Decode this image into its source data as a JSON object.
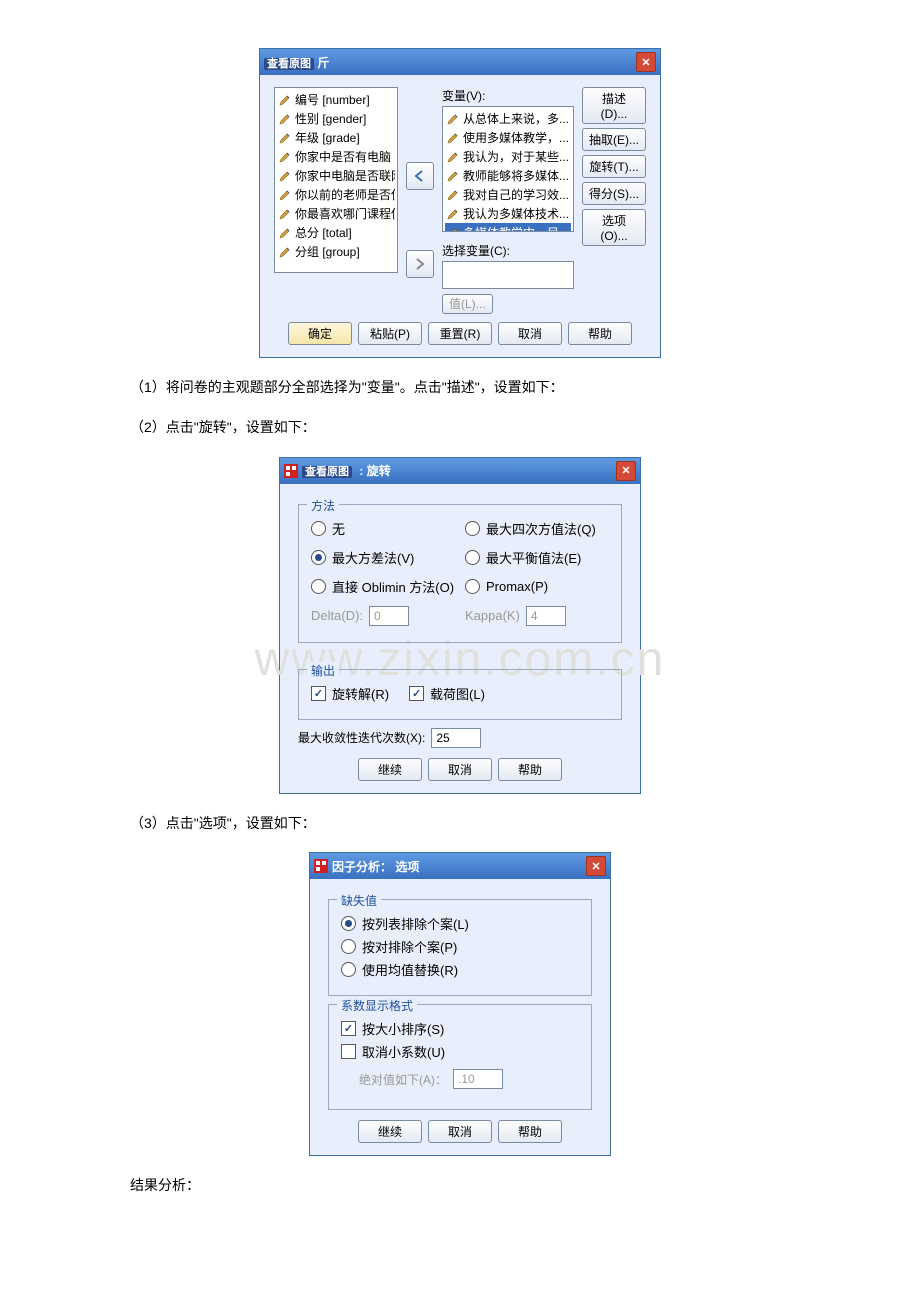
{
  "watermark": "www.zixin.com.cn",
  "dialog1": {
    "view_original_label": "查看原图",
    "title_suffix": "斤",
    "left_items": [
      "编号 [number]",
      "性别 [gender]",
      "年级 [grade]",
      "你家中是否有电脑 [c...",
      "你家中电脑是否联网 ...",
      "你以前的老师是否使...",
      "你最喜欢哪门课程使...",
      "总分 [total]",
      "分组 [group]"
    ],
    "var_label": "变量(V):",
    "select_var_label": "选择变量(C):",
    "right_items": [
      "从总体上来说，多...",
      "使用多媒体教学，...",
      "我认为，对于某些...",
      "教师能够将多媒体...",
      "我对自己的学习效...",
      "我认为多媒体技术...",
      "多媒体教学中，目..."
    ],
    "right_btns": [
      "描述(D)...",
      "抽取(E)...",
      "旋转(T)...",
      "得分(S)...",
      "选项(O)..."
    ],
    "value_btn": "值(L)...",
    "bottom_btns": [
      "确定",
      "粘贴(P)",
      "重置(R)",
      "取消",
      "帮助"
    ]
  },
  "step1": "（1）将问卷的主观题部分全部选择为\"变量\"。点击\"描述\"，设置如下：",
  "step2": "（2）点击\"旋转\"，设置如下：",
  "dialog2": {
    "title_tag": "查看原图",
    "title_suffix": "旋转",
    "group_method_title": "方法",
    "method_none": "无",
    "method_varimax": "最大方差法(V)",
    "method_oblimin": "直接 Oblimin 方法(O)",
    "method_quartimax": "最大四次方值法(Q)",
    "method_equamax": "最大平衡值法(E)",
    "method_promax": "Promax(P)",
    "delta_label": "Delta(D):",
    "delta_val": "0",
    "kappa_label": "Kappa(K)",
    "kappa_val": "4",
    "group_output_title": "输出",
    "out_rot": "旋转解(R)",
    "out_load": "载荷图(L)",
    "maxiter_label": "最大收敛性迭代次数(X):",
    "maxiter_val": "25",
    "bottom_btns": [
      "继续",
      "取消",
      "帮助"
    ]
  },
  "step3": "（3）点击\"选项\"，设置如下：",
  "dialog3": {
    "title": "因子分析： 选项",
    "group_missing_title": "缺失值",
    "miss_listwise": "按列表排除个案(L)",
    "miss_pairwise": "按对排除个案(P)",
    "miss_mean": "使用均值替换(R)",
    "group_coef_title": "系数显示格式",
    "coef_sort": "按大小排序(S)",
    "coef_suppress": "取消小系数(U)",
    "abs_label": "绝对值如下(A)：",
    "abs_val": ".10",
    "bottom_btns": [
      "继续",
      "取消",
      "帮助"
    ]
  },
  "result_label": "结果分析："
}
